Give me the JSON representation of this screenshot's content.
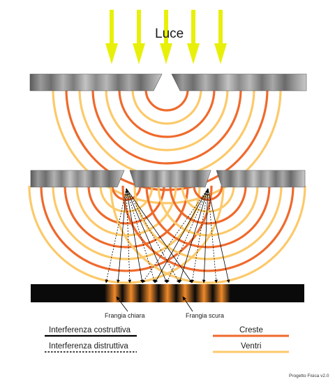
{
  "title": "Luce",
  "labels": {
    "bright_fringe": "Frangia chiara",
    "dark_fringe": "Frangia scura"
  },
  "legend": [
    {
      "id": "constructive",
      "label": "Interferenza costruttiva",
      "line": "solid",
      "color": "#000000"
    },
    {
      "id": "destructive",
      "label": "Interferenza distruttiva",
      "line": "dotted",
      "color": "#000000"
    },
    {
      "id": "crests",
      "label": "Creste",
      "line": "solid",
      "color": "#ef6a2c"
    },
    {
      "id": "troughs",
      "label": "Ventri",
      "line": "solid",
      "color": "#fcc96a"
    }
  ],
  "credit": "Progetto Fisica v2.0",
  "colors": {
    "light_arrows": "#e8f00a",
    "crest": "#ef6a2c",
    "trough": "#fcc96a",
    "screen": "#0a0a0a",
    "fringe": "#f08a2a"
  }
}
